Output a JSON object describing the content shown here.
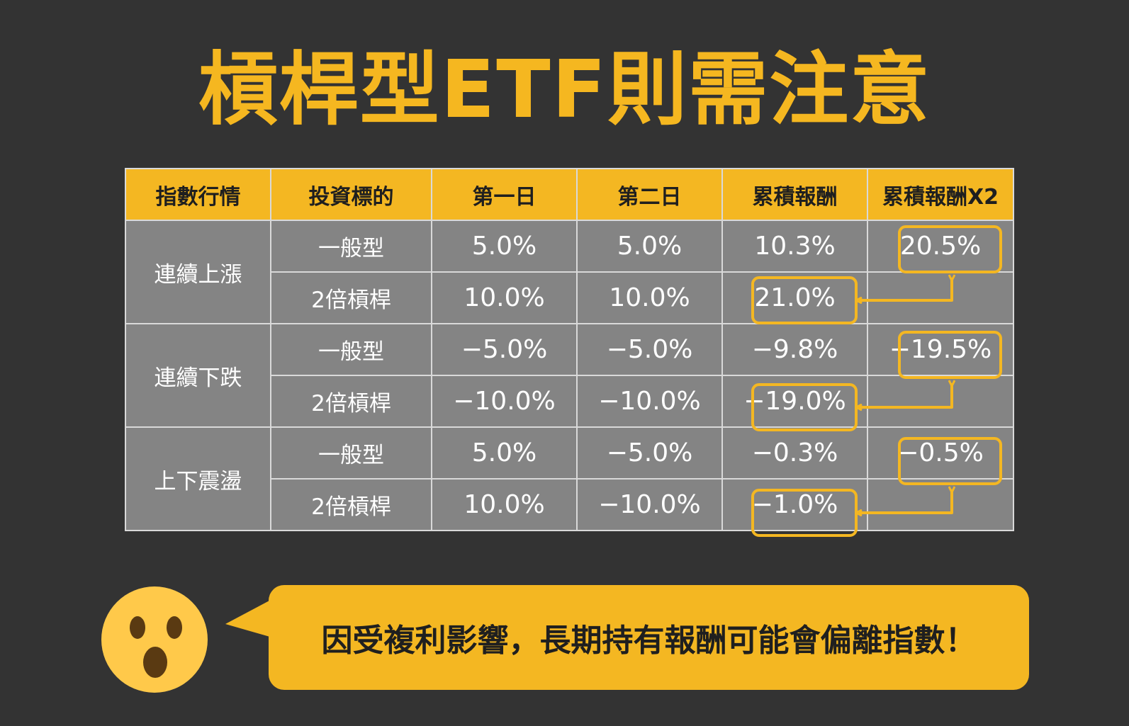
{
  "title": "槓桿型ETF則需注意",
  "table": {
    "headers": [
      "指數行情",
      "投資標的",
      "第一日",
      "第二日",
      "累積報酬",
      "累積報酬X2"
    ],
    "groups": [
      {
        "label": "連續上漲",
        "rows": [
          {
            "target": "一般型",
            "day1": "5.0%",
            "day2": "5.0%",
            "cumulative": "10.3%",
            "cumulative_x2": "20.5%"
          },
          {
            "target": "2倍槓桿",
            "day1": "10.0%",
            "day2": "10.0%",
            "cumulative": "21.0%",
            "cumulative_x2": ""
          }
        ]
      },
      {
        "label": "連續下跌",
        "rows": [
          {
            "target": "一般型",
            "day1": "−5.0%",
            "day2": "−5.0%",
            "cumulative": "−9.8%",
            "cumulative_x2": "−19.5%"
          },
          {
            "target": "2倍槓桿",
            "day1": "−10.0%",
            "day2": "−10.0%",
            "cumulative": "−19.0%",
            "cumulative_x2": ""
          }
        ]
      },
      {
        "label": "上下震盪",
        "rows": [
          {
            "target": "一般型",
            "day1": "5.0%",
            "day2": "−5.0%",
            "cumulative": "−0.3%",
            "cumulative_x2": "−0.5%"
          },
          {
            "target": "2倍槓桿",
            "day1": "10.0%",
            "day2": "−10.0%",
            "cumulative": "−1.0%",
            "cumulative_x2": ""
          }
        ]
      }
    ]
  },
  "callout": "因受複利影響，長期持有報酬可能會偏離指數！",
  "colors": {
    "accent": "#F4B722",
    "background": "#333333",
    "cell": "#848484",
    "emoji_face": "#FFC94A",
    "emoji_features": "#5a3a12"
  },
  "icons": {
    "emoji": "surprised-face-icon",
    "arrow": "arrow-connector-icon"
  }
}
